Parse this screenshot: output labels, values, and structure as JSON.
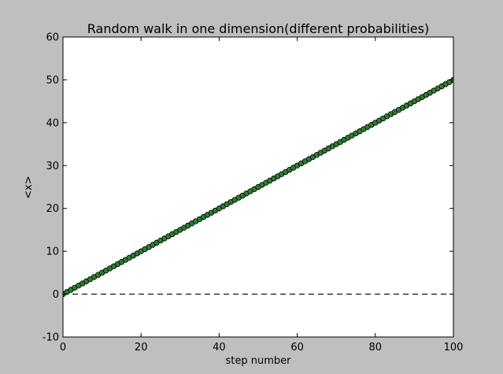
{
  "chart_data": {
    "type": "line",
    "title": "Random walk in one dimension(different probabilities)",
    "xlabel": "step number",
    "ylabel": "<x>",
    "xlim": [
      0,
      100
    ],
    "ylim": [
      -10,
      60
    ],
    "xticks": [
      0,
      20,
      40,
      60,
      80,
      100
    ],
    "yticks": [
      -10,
      0,
      10,
      20,
      30,
      40,
      50,
      60
    ],
    "grid": false,
    "series": [
      {
        "style": "line-with-circle-markers",
        "line_color": "#000000",
        "marker_color": "#2e7d32",
        "x": [
          0,
          1,
          2,
          3,
          4,
          5,
          6,
          7,
          8,
          9,
          10,
          11,
          12,
          13,
          14,
          15,
          16,
          17,
          18,
          19,
          20,
          21,
          22,
          23,
          24,
          25,
          26,
          27,
          28,
          29,
          30,
          31,
          32,
          33,
          34,
          35,
          36,
          37,
          38,
          39,
          40,
          41,
          42,
          43,
          44,
          45,
          46,
          47,
          48,
          49,
          50,
          51,
          52,
          53,
          54,
          55,
          56,
          57,
          58,
          59,
          60,
          61,
          62,
          63,
          64,
          65,
          66,
          67,
          68,
          69,
          70,
          71,
          72,
          73,
          74,
          75,
          76,
          77,
          78,
          79,
          80,
          81,
          82,
          83,
          84,
          85,
          86,
          87,
          88,
          89,
          90,
          91,
          92,
          93,
          94,
          95,
          96,
          97,
          98,
          99,
          100
        ],
        "y": [
          0,
          0.5,
          1,
          1.5,
          2,
          2.5,
          3,
          3.5,
          4,
          4.5,
          5,
          5.5,
          6,
          6.5,
          7,
          7.5,
          8,
          8.5,
          9,
          9.5,
          10,
          10.5,
          11,
          11.5,
          12,
          12.5,
          13,
          13.5,
          14,
          14.5,
          15,
          15.5,
          16,
          16.5,
          17,
          17.5,
          18,
          18.5,
          19,
          19.5,
          20,
          20.5,
          21,
          21.5,
          22,
          22.5,
          23,
          23.5,
          24,
          24.5,
          25,
          25.5,
          26,
          26.5,
          27,
          27.5,
          28,
          28.5,
          29,
          29.5,
          30,
          30.5,
          31,
          31.5,
          32,
          32.5,
          33,
          33.5,
          34,
          34.5,
          35,
          35.5,
          36,
          36.5,
          37,
          37.5,
          38,
          38.5,
          39,
          39.5,
          40,
          40.5,
          41,
          41.5,
          42,
          42.5,
          43,
          43.5,
          44,
          44.5,
          45,
          45.5,
          46,
          46.5,
          47,
          47.5,
          48,
          48.5,
          49,
          49.5,
          50
        ]
      },
      {
        "style": "dashed-reference-line",
        "line_color": "#000000",
        "x": [
          0,
          100
        ],
        "y": [
          0,
          0
        ]
      }
    ]
  }
}
